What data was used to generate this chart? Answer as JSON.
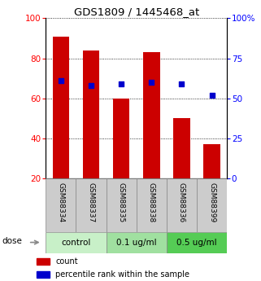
{
  "title": "GDS1809 / 1445468_at",
  "bar_values": [
    91,
    84,
    60,
    83,
    50,
    37
  ],
  "blue_values": [
    61,
    58,
    59,
    60,
    59,
    52
  ],
  "xlabels": [
    "GSM88334",
    "GSM88337",
    "GSM88335",
    "GSM88338",
    "GSM88336",
    "GSM88399"
  ],
  "groups": [
    {
      "label": "control",
      "indices": [
        0,
        1
      ],
      "color": "#c8f0c8"
    },
    {
      "label": "0.1 ug/ml",
      "indices": [
        2,
        3
      ],
      "color": "#a0e0a0"
    },
    {
      "label": "0.5 ug/ml",
      "indices": [
        4,
        5
      ],
      "color": "#55cc55"
    }
  ],
  "group_colors": [
    "#c8f0c8",
    "#a0e0a0",
    "#55cc55"
  ],
  "bar_color": "#cc0000",
  "blue_color": "#0000cc",
  "left_ylim": [
    20,
    100
  ],
  "right_ylim": [
    0,
    100
  ],
  "left_yticks": [
    20,
    40,
    60,
    80,
    100
  ],
  "right_yticks": [
    0,
    25,
    50,
    75,
    100
  ],
  "right_yticklabels": [
    "0",
    "25",
    "50",
    "75",
    "100%"
  ],
  "bar_width": 0.55,
  "dose_label": "dose",
  "legend_count": "count",
  "legend_percentile": "percentile rank within the sample",
  "xticklabel_bg": "#cccccc"
}
